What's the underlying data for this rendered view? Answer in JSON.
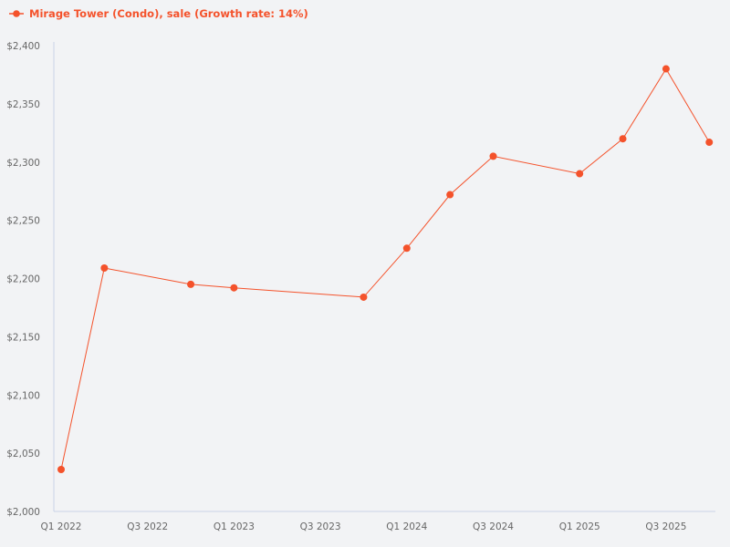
{
  "legend": {
    "label": "Mirage Tower (Condo), sale (Growth rate: 14%)",
    "color": "#f4522b"
  },
  "chart_data": {
    "type": "line",
    "title": "",
    "xlabel": "",
    "ylabel": "",
    "ylim": [
      2000,
      2400
    ],
    "grid": false,
    "legend_position": "top-left",
    "y_ticks": [
      "$2,000",
      "$2,050",
      "$2,100",
      "$2,150",
      "$2,200",
      "$2,250",
      "$2,300",
      "$2,350",
      "$2,400"
    ],
    "y_tick_values": [
      2000,
      2050,
      2100,
      2150,
      2200,
      2250,
      2300,
      2350,
      2400
    ],
    "x_ticks": [
      "Q1 2022",
      "Q3 2022",
      "Q1 2023",
      "Q3 2023",
      "Q1 2024",
      "Q3 2024",
      "Q1 2025",
      "Q3 2025"
    ],
    "series": [
      {
        "name": "Mirage Tower (Condo), sale (Growth rate: 14%)",
        "color": "#f4522b",
        "points": [
          {
            "x": "Q1 2022",
            "q": 0,
            "y": 2036
          },
          {
            "x": "Q2 2022",
            "q": 1,
            "y": 2209
          },
          {
            "x": "Q4 2022",
            "q": 3,
            "y": 2195
          },
          {
            "x": "Q1 2023",
            "q": 4,
            "y": 2192
          },
          {
            "x": "Q4 2023",
            "q": 7,
            "y": 2184
          },
          {
            "x": "Q1 2024",
            "q": 8,
            "y": 2226
          },
          {
            "x": "Q2 2024",
            "q": 9,
            "y": 2272
          },
          {
            "x": "Q3 2024",
            "q": 10,
            "y": 2305
          },
          {
            "x": "Q1 2025",
            "q": 12,
            "y": 2290
          },
          {
            "x": "Q2 2025",
            "q": 13,
            "y": 2320
          },
          {
            "x": "Q3 2025",
            "q": 14,
            "y": 2380
          },
          {
            "x": "Q4 2025",
            "q": 15,
            "y": 2317
          }
        ]
      }
    ]
  }
}
